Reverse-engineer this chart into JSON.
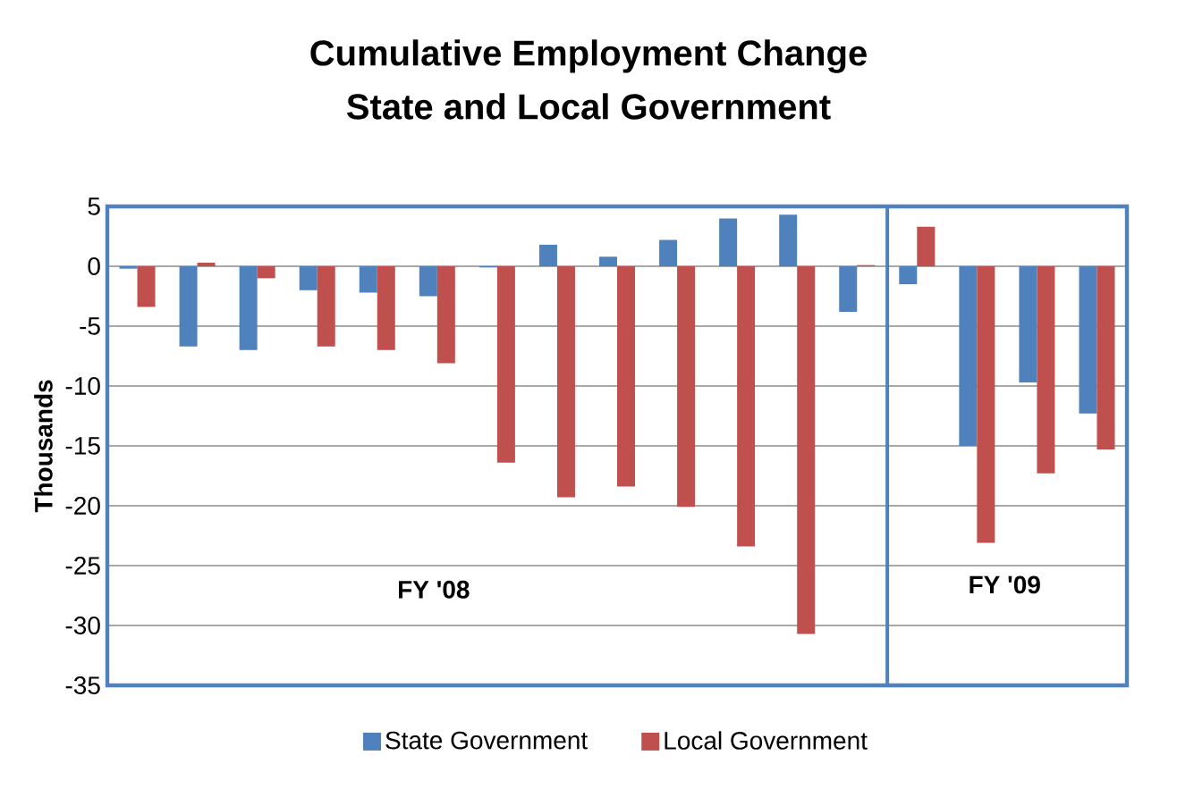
{
  "chart_data": {
    "type": "bar",
    "title": "Cumulative Employment Change",
    "subtitle": "State and Local Government",
    "ylabel": "Thousands",
    "categories": [
      null,
      null,
      null,
      null,
      null,
      null,
      null,
      null,
      null,
      null,
      null,
      null,
      null,
      null,
      null,
      null,
      null
    ],
    "series": [
      {
        "name": "State Government",
        "color": "#4f81bd",
        "values": [
          -0.2,
          -6.7,
          -7.0,
          -2.0,
          -2.2,
          -2.5,
          -0.1,
          1.8,
          0.8,
          2.2,
          4.0,
          4.3,
          -3.8,
          -1.5,
          -15.0,
          -9.7,
          -12.3
        ]
      },
      {
        "name": "Local Government",
        "color": "#c0504d",
        "values": [
          -3.4,
          0.3,
          -1.0,
          -6.7,
          -7.0,
          -8.1,
          -16.4,
          -19.3,
          -18.4,
          -20.1,
          -23.4,
          -30.7,
          0.1,
          3.3,
          -23.1,
          -17.3,
          -15.3
        ]
      }
    ],
    "ylim": [
      -35,
      5
    ],
    "yticks": [
      -35,
      -30,
      -25,
      -20,
      -15,
      -10,
      -5,
      0,
      5
    ],
    "grid": "y",
    "legend": "bottom",
    "annotations": [
      "FY '08",
      "FY '09"
    ]
  }
}
